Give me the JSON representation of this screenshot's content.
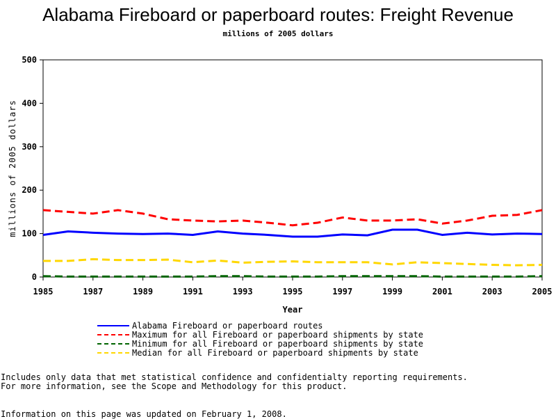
{
  "chart_data": {
    "type": "line",
    "title": "Alabama Fireboard or paperboard routes: Freight Revenue",
    "subtitle": "millions of 2005 dollars",
    "xlabel": "Year",
    "ylabel": "millions of 2005 dollars",
    "xlim": [
      1985,
      2005
    ],
    "ylim": [
      0,
      500
    ],
    "xticks": [
      "1985",
      "1987",
      "1989",
      "1991",
      "1993",
      "1995",
      "1997",
      "1999",
      "2001",
      "2003",
      "2005"
    ],
    "yticks": [
      "0",
      "100",
      "200",
      "300",
      "400",
      "500"
    ],
    "x": [
      1985,
      1986,
      1987,
      1988,
      1989,
      1990,
      1991,
      1992,
      1993,
      1994,
      1995,
      1996,
      1997,
      1998,
      1999,
      2000,
      2001,
      2002,
      2003,
      2004,
      2005
    ],
    "grid": false,
    "legend_position": "bottom",
    "series": [
      {
        "name": "Alabama Fireboard or paperboard routes",
        "color": "#0000ff",
        "style": "solid",
        "values": [
          97,
          105,
          102,
          100,
          99,
          100,
          97,
          105,
          100,
          97,
          93,
          93,
          98,
          96,
          109,
          109,
          97,
          102,
          98,
          100,
          99
        ]
      },
      {
        "name": "Maximum for all Fireboard or paperboard shipments by state",
        "color": "#ff0000",
        "style": "dashed",
        "values": [
          154,
          150,
          146,
          154,
          146,
          133,
          130,
          128,
          130,
          125,
          119,
          125,
          137,
          130,
          130,
          133,
          123,
          130,
          141,
          143,
          154
        ]
      },
      {
        "name": "Minimum for all Fireboard or paperboard shipments by state",
        "color": "#006400",
        "style": "dashed",
        "values": [
          2,
          1,
          1,
          1,
          1,
          1,
          1,
          2,
          2,
          1,
          1,
          1,
          2,
          2,
          2,
          2,
          1,
          1,
          1,
          1,
          2
        ]
      },
      {
        "name": "Median for all Fireboard or paperboard shipments by state",
        "color": "#ffd700",
        "style": "dashed",
        "values": [
          37,
          37,
          41,
          39,
          39,
          40,
          34,
          38,
          33,
          35,
          36,
          34,
          34,
          34,
          29,
          34,
          32,
          30,
          28,
          27,
          28
        ]
      }
    ]
  },
  "notes": {
    "line1": "Includes only data that met statistical confidence and confidentialty reporting requirements.",
    "line2": "For more information, see the Scope and Methodology for this product."
  },
  "updated": "Information on this page was updated on February 1, 2008."
}
